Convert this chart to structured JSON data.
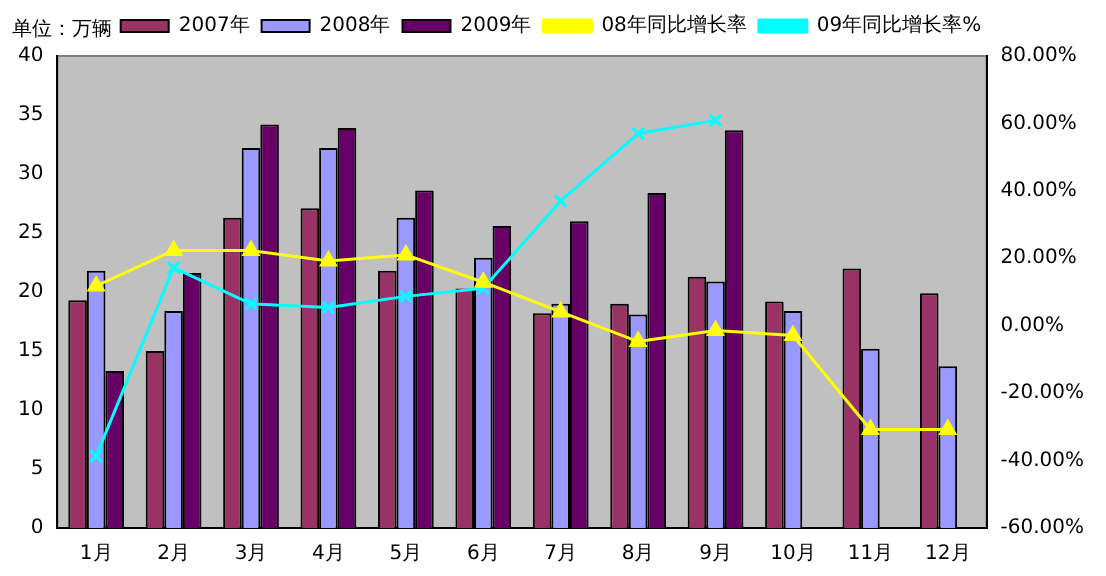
{
  "chart_data": {
    "type": "bar",
    "annotations": [
      "单位：万辆"
    ],
    "categories": [
      "1月",
      "2月",
      "3月",
      "4月",
      "5月",
      "6月",
      "7月",
      "8月",
      "9月",
      "10月",
      "11月",
      "12月"
    ],
    "series": [
      {
        "name": "2007年",
        "color": "#993366",
        "values": [
          19.3,
          15.0,
          26.3,
          27.1,
          21.8,
          20.3,
          18.2,
          19.0,
          21.3,
          19.2,
          22.0,
          19.9
        ]
      },
      {
        "name": "2008年",
        "color": "#9999ff",
        "values": [
          21.8,
          18.4,
          32.2,
          32.2,
          26.3,
          22.9,
          19.0,
          18.1,
          20.9,
          18.4,
          15.2,
          13.7
        ]
      },
      {
        "name": "2009年",
        "color": "#660066",
        "values": [
          13.3,
          21.6,
          34.2,
          33.9,
          28.6,
          25.6,
          26.0,
          28.4,
          33.7,
          null,
          null,
          null
        ]
      },
      {
        "name": "08年同比增长率",
        "type": "line",
        "axis": "y2",
        "marker": "triangle",
        "color": "#ffff00",
        "values": [
          11.8,
          22.3,
          22.3,
          19.2,
          21.0,
          12.9,
          4.1,
          -4.7,
          -1.4,
          -2.9,
          -30.8,
          -30.8
        ]
      },
      {
        "name": "09年同比增长率%",
        "type": "line",
        "axis": "y2",
        "marker": "cross",
        "color": "#00ffff",
        "values": [
          -38.7,
          17.2,
          6.5,
          5.4,
          8.7,
          11.1,
          37.0,
          57.0,
          60.9,
          null,
          null,
          null
        ]
      }
    ],
    "ylim": [
      0,
      40
    ],
    "yticks": [
      0,
      5,
      10,
      15,
      20,
      25,
      30,
      35,
      40
    ],
    "y2lim": [
      -60,
      80
    ],
    "y2ticks": [
      {
        "value": -60,
        "label": "-60.00%"
      },
      {
        "value": -40,
        "label": "-40.00%"
      },
      {
        "value": -20,
        "label": "-20.00%"
      },
      {
        "value": 0,
        "label": "0.00%"
      },
      {
        "value": 20,
        "label": "20.00%"
      },
      {
        "value": 40,
        "label": "40.00%"
      },
      {
        "value": 60,
        "label": "60.00%"
      },
      {
        "value": 80,
        "label": "80.00%"
      }
    ],
    "grid": false,
    "legend": "top"
  }
}
